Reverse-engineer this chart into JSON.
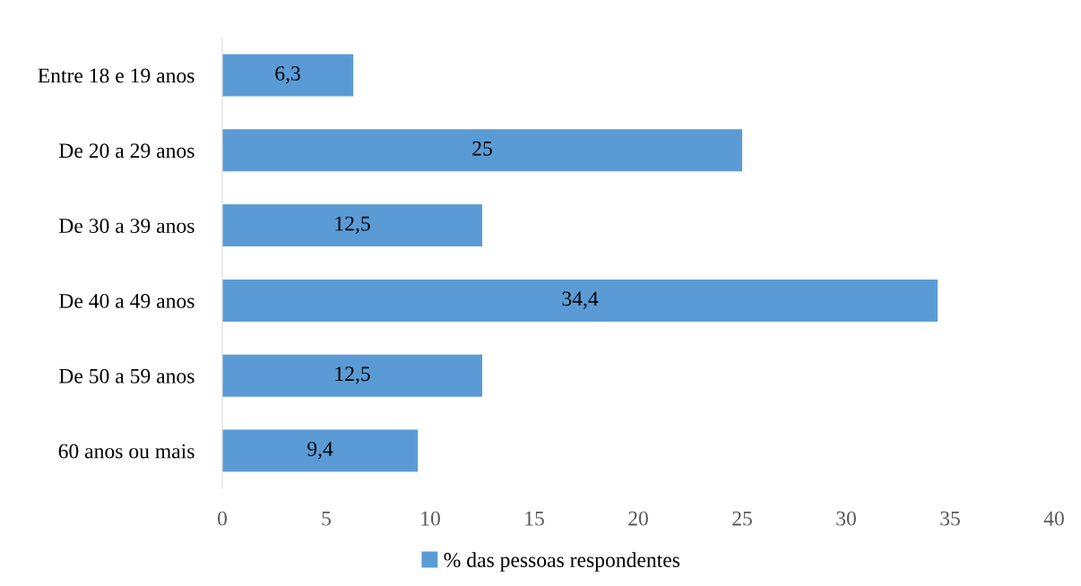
{
  "chart_data": {
    "type": "bar",
    "orientation": "horizontal",
    "categories": [
      "Entre 18 e 19 anos",
      "De 20 a 29 anos",
      "De 30 a 39 anos",
      "De 40 a 49 anos",
      "De 50 a 59 anos",
      "60 anos ou mais"
    ],
    "series": [
      {
        "name": "% das pessoas respondentes",
        "color": "#5b9bd5",
        "values": [
          6.3,
          25,
          12.5,
          34.4,
          12.5,
          9.4
        ],
        "value_labels": [
          "6,3",
          "25",
          "12,5",
          "34,4",
          "12,5",
          "9,4"
        ]
      }
    ],
    "xlim": [
      0,
      40
    ],
    "xticks": [
      0,
      5,
      10,
      15,
      20,
      25,
      30,
      35,
      40
    ],
    "grid": false,
    "legend": "bottom"
  }
}
